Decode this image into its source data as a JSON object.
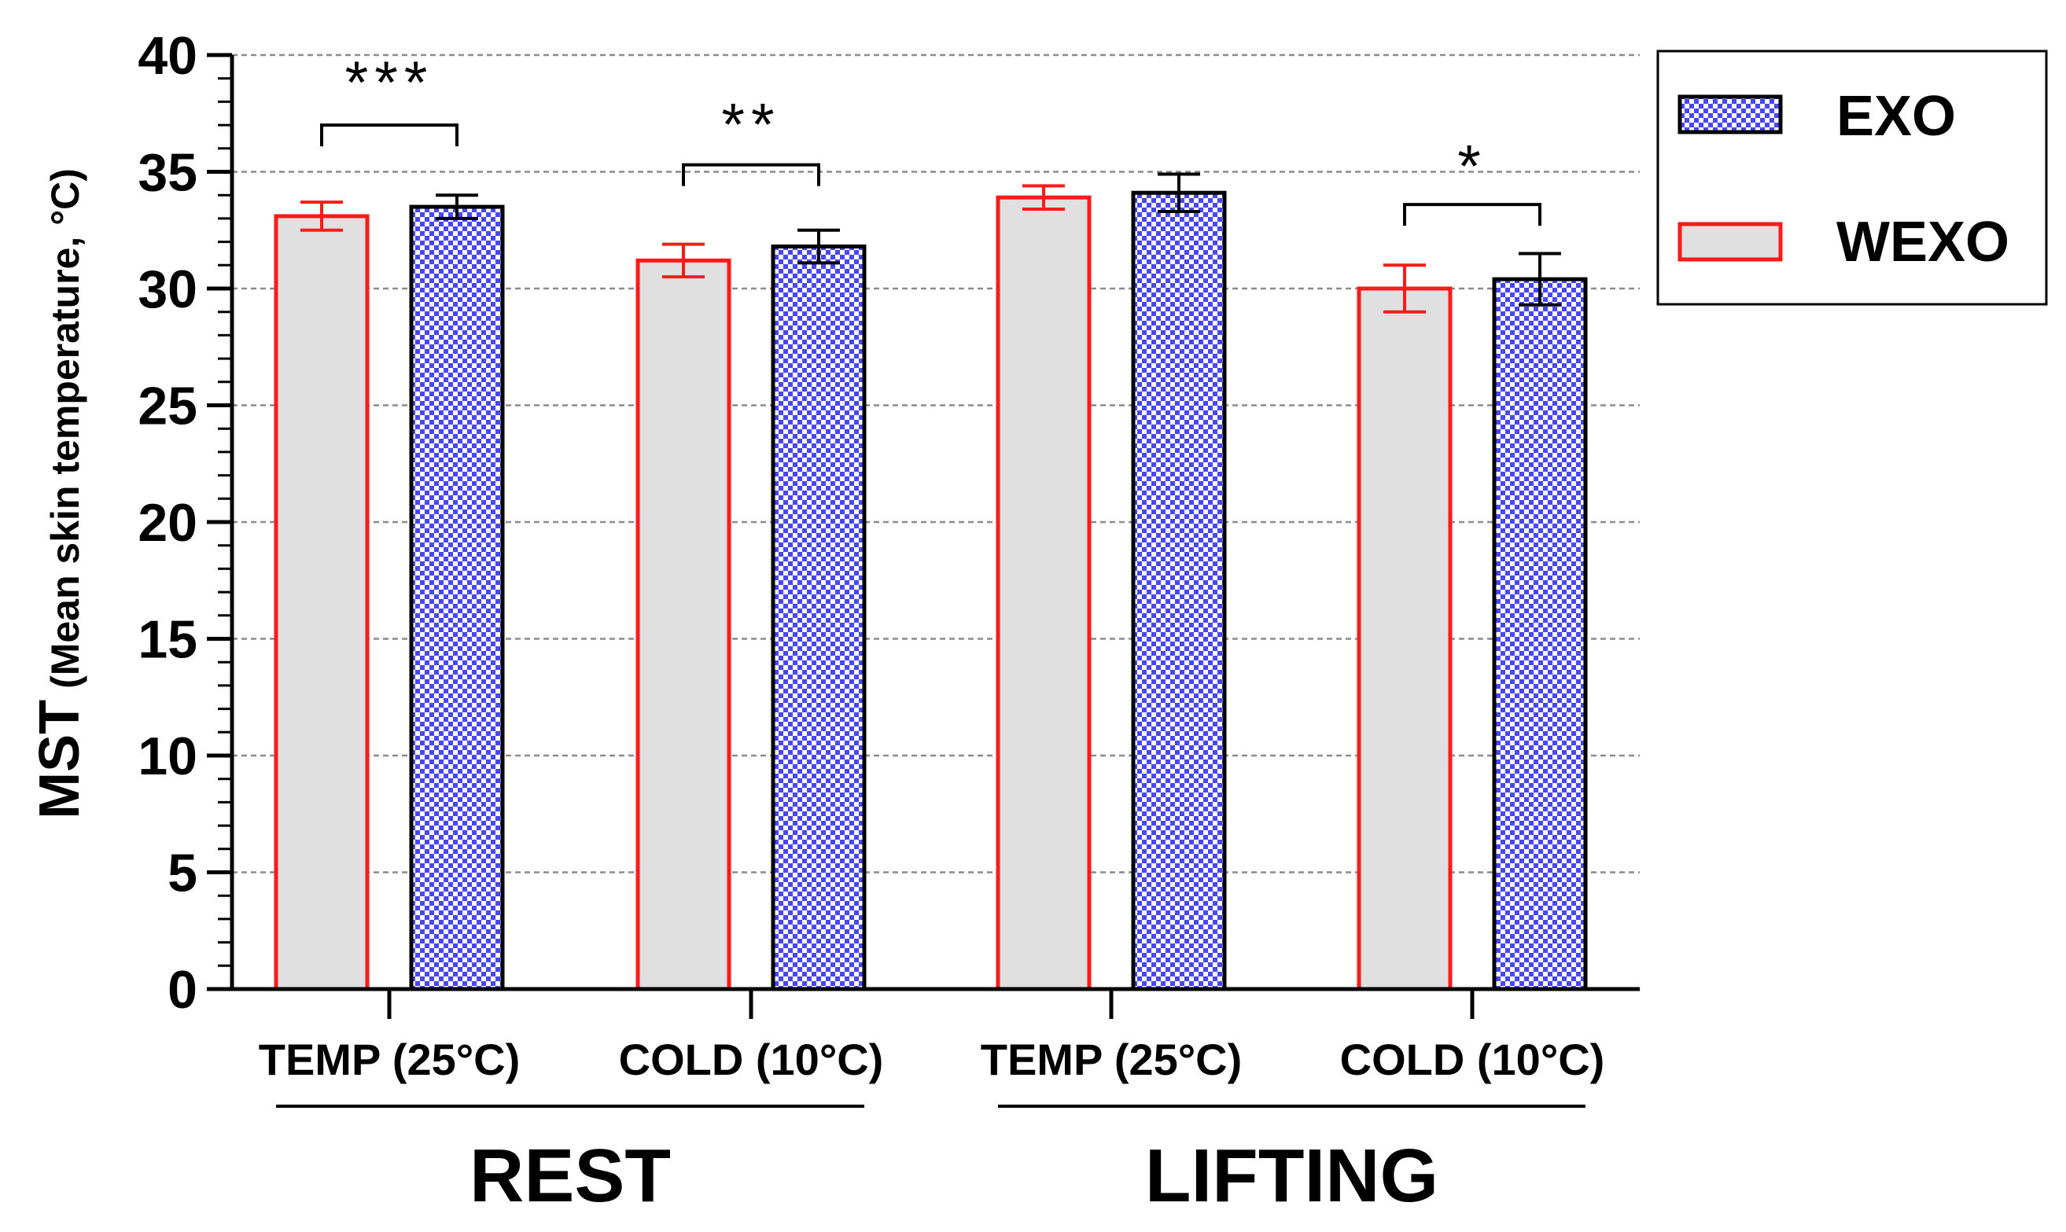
{
  "chart_data": {
    "type": "bar",
    "ylabel_main": "MST",
    "ylabel_sub": "(Mean skin temperature, °C)",
    "ylim": [
      0,
      40
    ],
    "yticks": [
      0,
      5,
      10,
      15,
      20,
      25,
      30,
      35,
      40
    ],
    "y_minor_step": 1,
    "grid": true,
    "legend_position": "top-right",
    "categories": [
      "TEMP (25°C)",
      "COLD (10°C)",
      "TEMP (25°C)",
      "COLD (10°C)"
    ],
    "groups": [
      {
        "label": "REST",
        "categories": [
          0,
          1
        ]
      },
      {
        "label": "LIFTING",
        "categories": [
          2,
          3
        ]
      }
    ],
    "series": [
      {
        "name": "WEXO",
        "values": [
          33.1,
          31.2,
          33.9,
          30.0
        ],
        "errors": [
          0.6,
          0.7,
          0.5,
          1.0
        ],
        "fill": "#e0e0e0",
        "stroke": "#ff1a1a",
        "pattern": "solid"
      },
      {
        "name": "EXO",
        "values": [
          33.5,
          31.8,
          34.1,
          30.4
        ],
        "errors": [
          0.5,
          0.7,
          0.8,
          1.1
        ],
        "fill": "#ffffff",
        "stroke": "#000000",
        "pattern": "checker",
        "pattern_color": "#4747ff"
      }
    ],
    "significance": [
      {
        "category": 0,
        "label": "***"
      },
      {
        "category": 1,
        "label": "**"
      },
      {
        "category": 3,
        "label": "*"
      }
    ],
    "legend_order": [
      "EXO",
      "WEXO"
    ]
  }
}
